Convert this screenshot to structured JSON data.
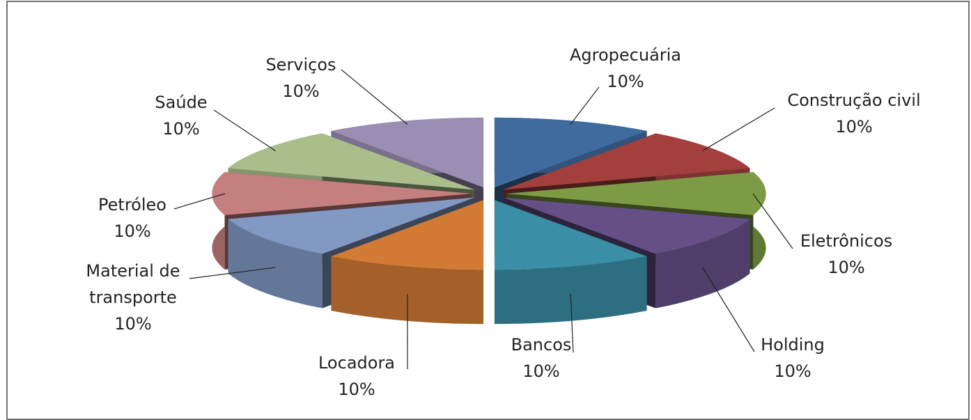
{
  "chart_data": {
    "type": "pie",
    "categories": [
      "Agropecuária",
      "Construção civil",
      "Eletrônicos",
      "Holding",
      "Bancos",
      "Locadora",
      "Material de transporte",
      "Petróleo",
      "Saúde",
      "Serviços"
    ],
    "values": [
      10,
      10,
      10,
      10,
      10,
      10,
      10,
      10,
      10,
      10
    ],
    "value_labels": [
      "10%",
      "10%",
      "10%",
      "10%",
      "10%",
      "10%",
      "10%",
      "10%",
      "10%",
      "10%"
    ],
    "colors": [
      "#3f6b9f",
      "#a3403e",
      "#7c9b44",
      "#654f86",
      "#3a8ea5",
      "#d27b35",
      "#8299c4",
      "#c47f7e",
      "#a9be8a",
      "#9a8fb3"
    ]
  }
}
